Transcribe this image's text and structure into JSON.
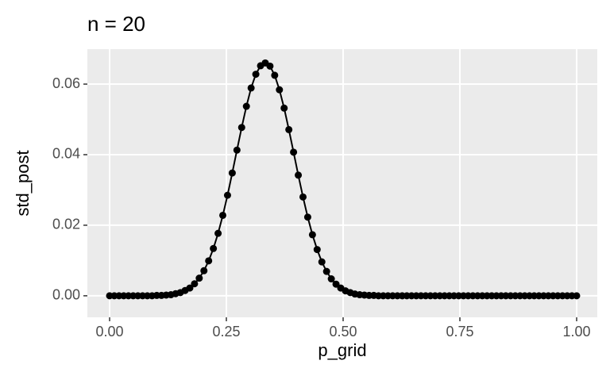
{
  "chart_data": {
    "type": "line",
    "title": "n = 20",
    "x_label": "p_grid",
    "y_label": "std_post",
    "x": [
      0,
      0.0101,
      0.0202,
      0.0303,
      0.0404,
      0.0505,
      0.0606,
      0.0707,
      0.0808,
      0.0909,
      0.101,
      0.1111,
      0.1212,
      0.1313,
      0.1414,
      0.1515,
      0.1616,
      0.1717,
      0.1818,
      0.1919,
      0.202,
      0.2121,
      0.2222,
      0.2323,
      0.2424,
      0.2525,
      0.2626,
      0.2727,
      0.2828,
      0.2929,
      0.303,
      0.3131,
      0.3232,
      0.3333,
      0.3434,
      0.3535,
      0.3636,
      0.3737,
      0.3838,
      0.3939,
      0.404,
      0.4141,
      0.4242,
      0.4343,
      0.4444,
      0.4545,
      0.4646,
      0.4747,
      0.4848,
      0.4949,
      0.5051,
      0.5152,
      0.5253,
      0.5354,
      0.5455,
      0.5556,
      0.5657,
      0.5758,
      0.5859,
      0.596,
      0.6061,
      0.6162,
      0.6263,
      0.6364,
      0.6465,
      0.6566,
      0.6667,
      0.6768,
      0.6869,
      0.697,
      0.7071,
      0.7172,
      0.7273,
      0.7374,
      0.7475,
      0.7576,
      0.7677,
      0.7778,
      0.7879,
      0.798,
      0.8081,
      0.8182,
      0.8283,
      0.8384,
      0.8485,
      0.8586,
      0.8687,
      0.8788,
      0.8889,
      0.899,
      0.9091,
      0.9192,
      0.9293,
      0.9394,
      0.9495,
      0.9596,
      0.9697,
      0.9798,
      0.9899,
      1
    ],
    "series": [
      {
        "color": "#000000",
        "values": [
          0,
          0,
          0,
          0,
          0,
          0,
          0,
          0,
          0,
          0,
          0.0001,
          0.0001,
          0.0002,
          0.0003,
          0.0006,
          0.0009,
          0.0015,
          0.0022,
          0.0034,
          0.005,
          0.0071,
          0.0099,
          0.0134,
          0.0177,
          0.0228,
          0.0285,
          0.0348,
          0.0413,
          0.0477,
          0.0537,
          0.0589,
          0.0628,
          0.0652,
          0.066,
          0.0651,
          0.0625,
          0.0584,
          0.0532,
          0.0471,
          0.0407,
          0.0342,
          0.028,
          0.0223,
          0.0173,
          0.0131,
          0.0096,
          0.0069,
          0.0048,
          0.0033,
          0.0022,
          0.0014,
          0.0009,
          0.0005,
          0.0003,
          0.0002,
          0.0001,
          0.0001,
          0,
          0,
          0,
          0,
          0,
          0,
          0,
          0,
          0,
          0,
          0,
          0,
          0,
          0,
          0,
          0,
          0,
          0,
          0,
          0,
          0,
          0,
          0,
          0,
          0,
          0,
          0,
          0,
          0,
          0,
          0,
          0,
          0,
          0,
          0,
          0,
          0,
          0,
          0,
          0,
          0,
          0,
          0
        ]
      }
    ],
    "xlim": [
      -0.0476,
      1.0442
    ],
    "ylim": [
      -0.0061,
      0.0699
    ],
    "xticks": [
      {
        "value": 0,
        "label": "0.00"
      },
      {
        "value": 0.25,
        "label": "0.25"
      },
      {
        "value": 0.5,
        "label": "0.50"
      },
      {
        "value": 0.75,
        "label": "0.75"
      },
      {
        "value": 1,
        "label": "1.00"
      }
    ],
    "yticks": [
      {
        "value": 0,
        "label": "0.00"
      },
      {
        "value": 0.02,
        "label": "0.02"
      },
      {
        "value": 0.04,
        "label": "0.04"
      },
      {
        "value": 0.06,
        "label": "0.06"
      }
    ],
    "grid": true
  }
}
